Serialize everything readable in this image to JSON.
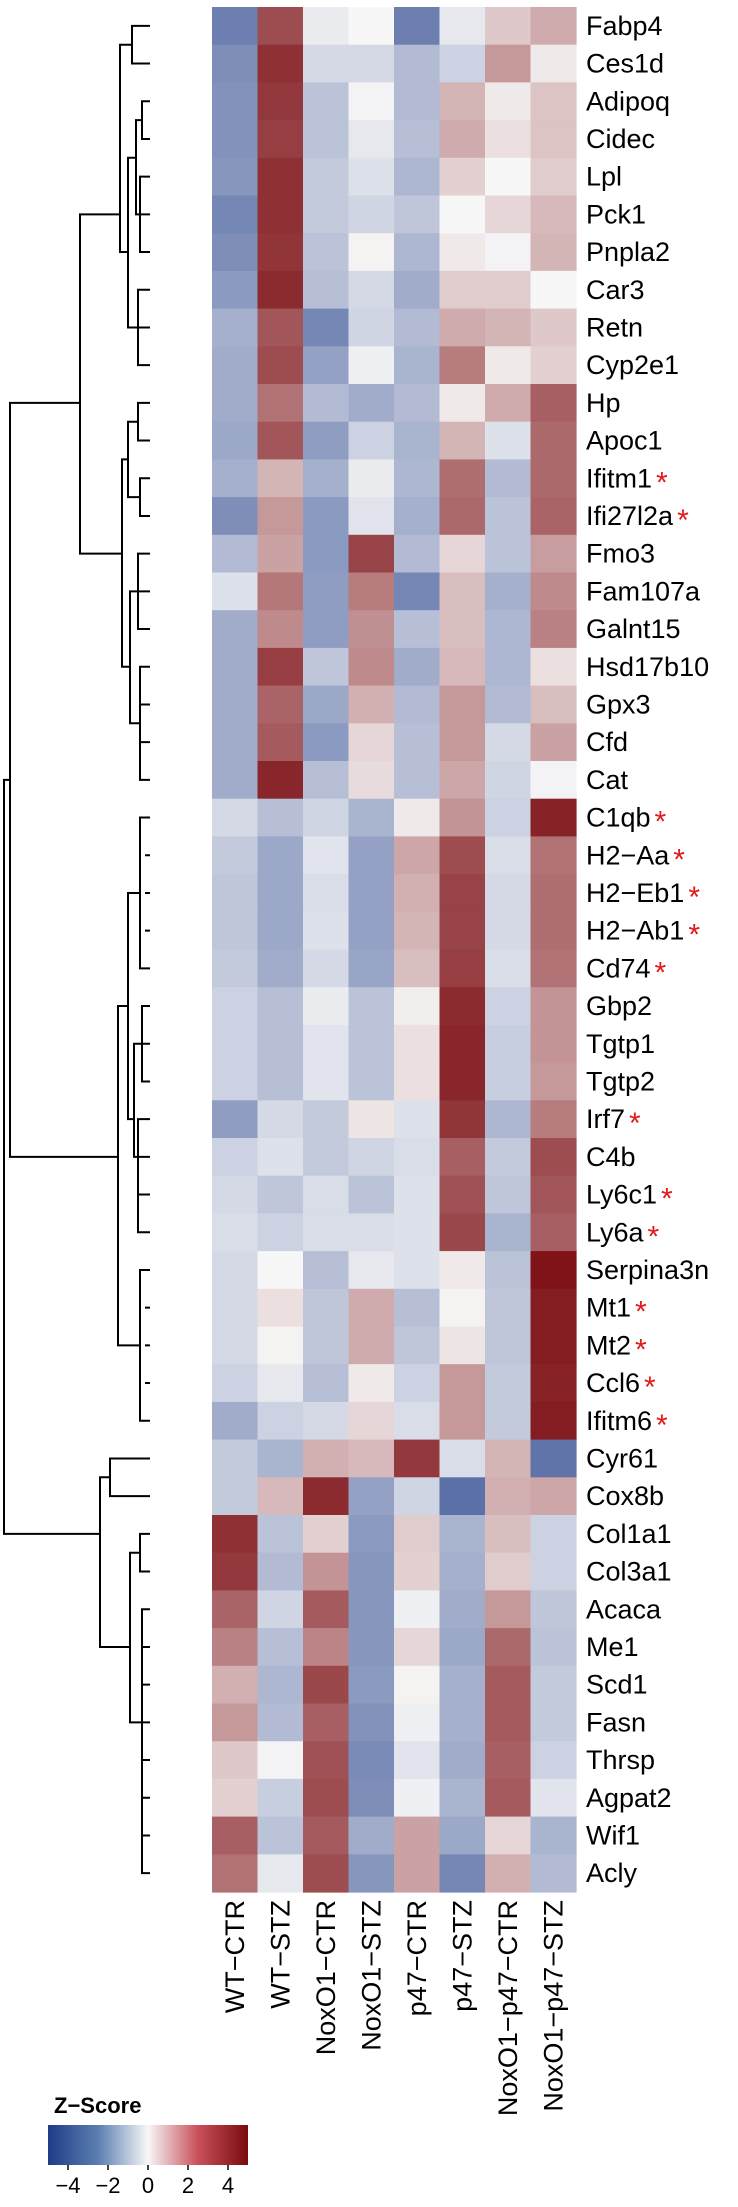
{
  "chart_data": {
    "type": "heatmap",
    "title": "",
    "columns": [
      "WT−CTR",
      "WT−STZ",
      "NoxO1−CTR",
      "NoxO1−STZ",
      "p47−CTR",
      "p47−STZ",
      "NoxO1−p47−CTR",
      "NoxO1−p47−STZ"
    ],
    "rows": [
      {
        "gene": "Fabp4",
        "marked": false,
        "values": [
          -3.2,
          3.6,
          -0.3,
          0.0,
          -3.2,
          -0.4,
          1.0,
          1.6
        ]
      },
      {
        "gene": "Ces1d",
        "marked": false,
        "values": [
          -2.8,
          4.2,
          -0.8,
          -0.8,
          -1.6,
          -1.0,
          2.0,
          0.3
        ]
      },
      {
        "gene": "Adipoq",
        "marked": false,
        "values": [
          -2.7,
          4.0,
          -1.4,
          -0.1,
          -1.6,
          1.4,
          0.3,
          1.1
        ]
      },
      {
        "gene": "Cidec",
        "marked": false,
        "values": [
          -2.7,
          3.9,
          -1.4,
          -0.4,
          -1.5,
          1.6,
          0.5,
          1.1
        ]
      },
      {
        "gene": "Lpl",
        "marked": false,
        "values": [
          -2.6,
          4.2,
          -1.2,
          -0.6,
          -1.7,
          0.8,
          0.0,
          0.9
        ]
      },
      {
        "gene": "Pck1",
        "marked": false,
        "values": [
          -3.0,
          4.2,
          -1.2,
          -0.9,
          -1.3,
          0.0,
          0.7,
          1.3
        ]
      },
      {
        "gene": "Pnpla2",
        "marked": false,
        "values": [
          -2.8,
          4.1,
          -1.4,
          0.1,
          -1.7,
          0.3,
          -0.1,
          1.4
        ]
      },
      {
        "gene": "Car3",
        "marked": false,
        "values": [
          -2.5,
          4.3,
          -1.5,
          -0.8,
          -2.0,
          0.9,
          0.9,
          0.0
        ]
      },
      {
        "gene": "Retn",
        "marked": false,
        "values": [
          -1.9,
          3.4,
          -3.0,
          -0.9,
          -1.6,
          1.6,
          1.4,
          1.0
        ]
      },
      {
        "gene": "Cyp2e1",
        "marked": false,
        "values": [
          -2.0,
          3.6,
          -2.3,
          -0.2,
          -1.8,
          2.6,
          0.3,
          0.8
        ]
      },
      {
        "gene": "Hp",
        "marked": false,
        "values": [
          -2.0,
          2.8,
          -1.6,
          -2.0,
          -1.6,
          0.3,
          1.6,
          3.2
        ]
      },
      {
        "gene": "Apoc1",
        "marked": false,
        "values": [
          -2.1,
          3.4,
          -2.4,
          -1.0,
          -1.8,
          1.4,
          -0.6,
          3.0
        ]
      },
      {
        "gene": "Ifitm1",
        "marked": true,
        "values": [
          -1.9,
          1.4,
          -1.9,
          -0.3,
          -1.7,
          2.9,
          -1.6,
          3.0
        ]
      },
      {
        "gene": "Ifi27l2a",
        "marked": true,
        "values": [
          -2.8,
          2.0,
          -2.5,
          -0.5,
          -1.9,
          3.0,
          -1.4,
          3.1
        ]
      },
      {
        "gene": "Fmo3",
        "marked": false,
        "values": [
          -1.6,
          1.8,
          -2.5,
          3.8,
          -1.6,
          0.7,
          -1.4,
          1.9
        ]
      },
      {
        "gene": "Fam107a",
        "marked": false,
        "values": [
          -0.6,
          2.7,
          -2.4,
          2.6,
          -3.0,
          1.2,
          -1.9,
          2.3
        ]
      },
      {
        "gene": "Galnt15",
        "marked": false,
        "values": [
          -2.0,
          2.3,
          -2.4,
          2.2,
          -1.5,
          1.2,
          -1.7,
          2.5
        ]
      },
      {
        "gene": "Hsd17b10",
        "marked": false,
        "values": [
          -2.0,
          3.9,
          -1.3,
          2.3,
          -2.0,
          1.3,
          -1.7,
          0.5
        ]
      },
      {
        "gene": "Gpx3",
        "marked": false,
        "values": [
          -2.0,
          3.1,
          -2.1,
          1.5,
          -1.6,
          2.0,
          -1.6,
          1.2
        ]
      },
      {
        "gene": "Cfd",
        "marked": false,
        "values": [
          -2.0,
          3.3,
          -2.5,
          0.7,
          -1.5,
          2.0,
          -0.8,
          1.8
        ]
      },
      {
        "gene": "Cat",
        "marked": false,
        "values": [
          -2.0,
          4.4,
          -1.5,
          0.6,
          -1.5,
          1.7,
          -0.9,
          -0.1
        ]
      },
      {
        "gene": "C1qb",
        "marked": true,
        "values": [
          -0.8,
          -1.5,
          -0.9,
          -1.8,
          0.3,
          2.1,
          -1.0,
          4.5
        ]
      },
      {
        "gene": "H2−Aa",
        "marked": true,
        "values": [
          -1.2,
          -2.1,
          -0.5,
          -2.3,
          1.7,
          3.6,
          -0.7,
          2.8
        ]
      },
      {
        "gene": "H2−Eb1",
        "marked": true,
        "values": [
          -1.3,
          -2.1,
          -0.7,
          -2.3,
          1.5,
          3.8,
          -0.8,
          2.9
        ]
      },
      {
        "gene": "H2−Ab1",
        "marked": true,
        "values": [
          -1.3,
          -2.1,
          -0.6,
          -2.3,
          1.4,
          3.8,
          -0.8,
          2.9
        ]
      },
      {
        "gene": "Cd74",
        "marked": true,
        "values": [
          -1.2,
          -2.0,
          -0.8,
          -2.2,
          1.2,
          3.9,
          -0.7,
          2.8
        ]
      },
      {
        "gene": "Gbp2",
        "marked": false,
        "values": [
          -1.0,
          -1.5,
          -0.3,
          -1.4,
          0.2,
          4.3,
          -1.0,
          2.1
        ]
      },
      {
        "gene": "Tgtp1",
        "marked": false,
        "values": [
          -1.0,
          -1.5,
          -0.5,
          -1.4,
          0.5,
          4.4,
          -1.1,
          2.1
        ]
      },
      {
        "gene": "Tgtp2",
        "marked": false,
        "values": [
          -1.0,
          -1.5,
          -0.5,
          -1.4,
          0.5,
          4.4,
          -1.1,
          2.0
        ]
      },
      {
        "gene": "Irf7",
        "marked": true,
        "values": [
          -2.4,
          -0.8,
          -1.2,
          0.4,
          -0.6,
          4.1,
          -1.7,
          2.6
        ]
      },
      {
        "gene": "C4b",
        "marked": false,
        "values": [
          -1.0,
          -0.6,
          -1.2,
          -0.9,
          -0.7,
          3.2,
          -1.2,
          3.6
        ]
      },
      {
        "gene": "Ly6c1",
        "marked": true,
        "values": [
          -0.8,
          -1.3,
          -0.7,
          -1.4,
          -0.6,
          3.5,
          -1.3,
          3.4
        ]
      },
      {
        "gene": "Ly6a",
        "marked": true,
        "values": [
          -0.7,
          -1.0,
          -0.7,
          -0.7,
          -0.6,
          3.7,
          -1.8,
          3.2
        ]
      },
      {
        "gene": "Serpina3n",
        "marked": false,
        "values": [
          -0.8,
          0.0,
          -1.5,
          -0.4,
          -0.6,
          0.3,
          -1.4,
          4.8
        ]
      },
      {
        "gene": "Mt1",
        "marked": true,
        "values": [
          -0.8,
          0.5,
          -1.3,
          1.6,
          -1.5,
          0.1,
          -1.3,
          4.6
        ]
      },
      {
        "gene": "Mt2",
        "marked": true,
        "values": [
          -0.8,
          0.1,
          -1.3,
          1.6,
          -1.3,
          0.4,
          -1.3,
          4.6
        ]
      },
      {
        "gene": "Ccl6",
        "marked": true,
        "values": [
          -1.0,
          -0.4,
          -1.5,
          0.3,
          -1.0,
          2.0,
          -1.2,
          4.5
        ]
      },
      {
        "gene": "Ifitm6",
        "marked": true,
        "values": [
          -2.0,
          -1.0,
          -0.8,
          0.7,
          -0.7,
          2.0,
          -1.2,
          4.6
        ]
      },
      {
        "gene": "Cyr61",
        "marked": false,
        "values": [
          -1.2,
          -1.8,
          1.5,
          1.3,
          4.0,
          -0.7,
          1.4,
          -3.5
        ]
      },
      {
        "gene": "Cox8b",
        "marked": false,
        "values": [
          -1.2,
          1.3,
          4.3,
          -2.3,
          -0.9,
          -3.6,
          1.5,
          1.7
        ]
      },
      {
        "gene": "Col1a1",
        "marked": false,
        "values": [
          4.2,
          -1.4,
          0.8,
          -2.5,
          0.9,
          -1.8,
          1.2,
          -1.0
        ]
      },
      {
        "gene": "Col3a1",
        "marked": false,
        "values": [
          4.0,
          -1.6,
          2.1,
          -2.6,
          0.8,
          -1.9,
          0.9,
          -1.0
        ]
      },
      {
        "gene": "Acaca",
        "marked": false,
        "values": [
          3.1,
          -0.9,
          3.3,
          -2.6,
          -0.2,
          -2.0,
          2.0,
          -1.3
        ]
      },
      {
        "gene": "Me1",
        "marked": false,
        "values": [
          2.5,
          -1.5,
          2.4,
          -2.6,
          0.7,
          -2.1,
          3.0,
          -1.4
        ]
      },
      {
        "gene": "Scd1",
        "marked": false,
        "values": [
          1.5,
          -1.7,
          3.7,
          -2.5,
          0.1,
          -1.9,
          3.3,
          -1.2
        ]
      },
      {
        "gene": "Fasn",
        "marked": false,
        "values": [
          2.0,
          -1.6,
          3.2,
          -2.7,
          -0.2,
          -1.9,
          3.3,
          -1.2
        ]
      },
      {
        "gene": "Thrsp",
        "marked": false,
        "values": [
          1.0,
          -0.1,
          3.5,
          -2.9,
          -0.5,
          -2.0,
          3.2,
          -1.0
        ]
      },
      {
        "gene": "Agpat2",
        "marked": false,
        "values": [
          0.8,
          -1.1,
          3.6,
          -2.8,
          -0.2,
          -1.8,
          3.3,
          -0.5
        ]
      },
      {
        "gene": "Wif1",
        "marked": false,
        "values": [
          3.2,
          -1.4,
          3.3,
          -2.0,
          1.8,
          -2.1,
          0.7,
          -1.8
        ]
      },
      {
        "gene": "Acly",
        "marked": false,
        "values": [
          2.8,
          -0.4,
          3.6,
          -2.6,
          1.8,
          -3.0,
          1.5,
          -1.6
        ]
      }
    ],
    "legend": {
      "title": "Z−Score",
      "ticks": [
        "−4",
        "−2",
        "0",
        "2",
        "4"
      ],
      "range": [
        -5,
        5
      ],
      "colors": {
        "low": "#1f3c88",
        "mid": "#f7f7f7",
        "high": "#7a0a0f"
      }
    },
    "marker_symbol": "*",
    "marker_color": "#e01919",
    "row_dendrogram": true
  }
}
